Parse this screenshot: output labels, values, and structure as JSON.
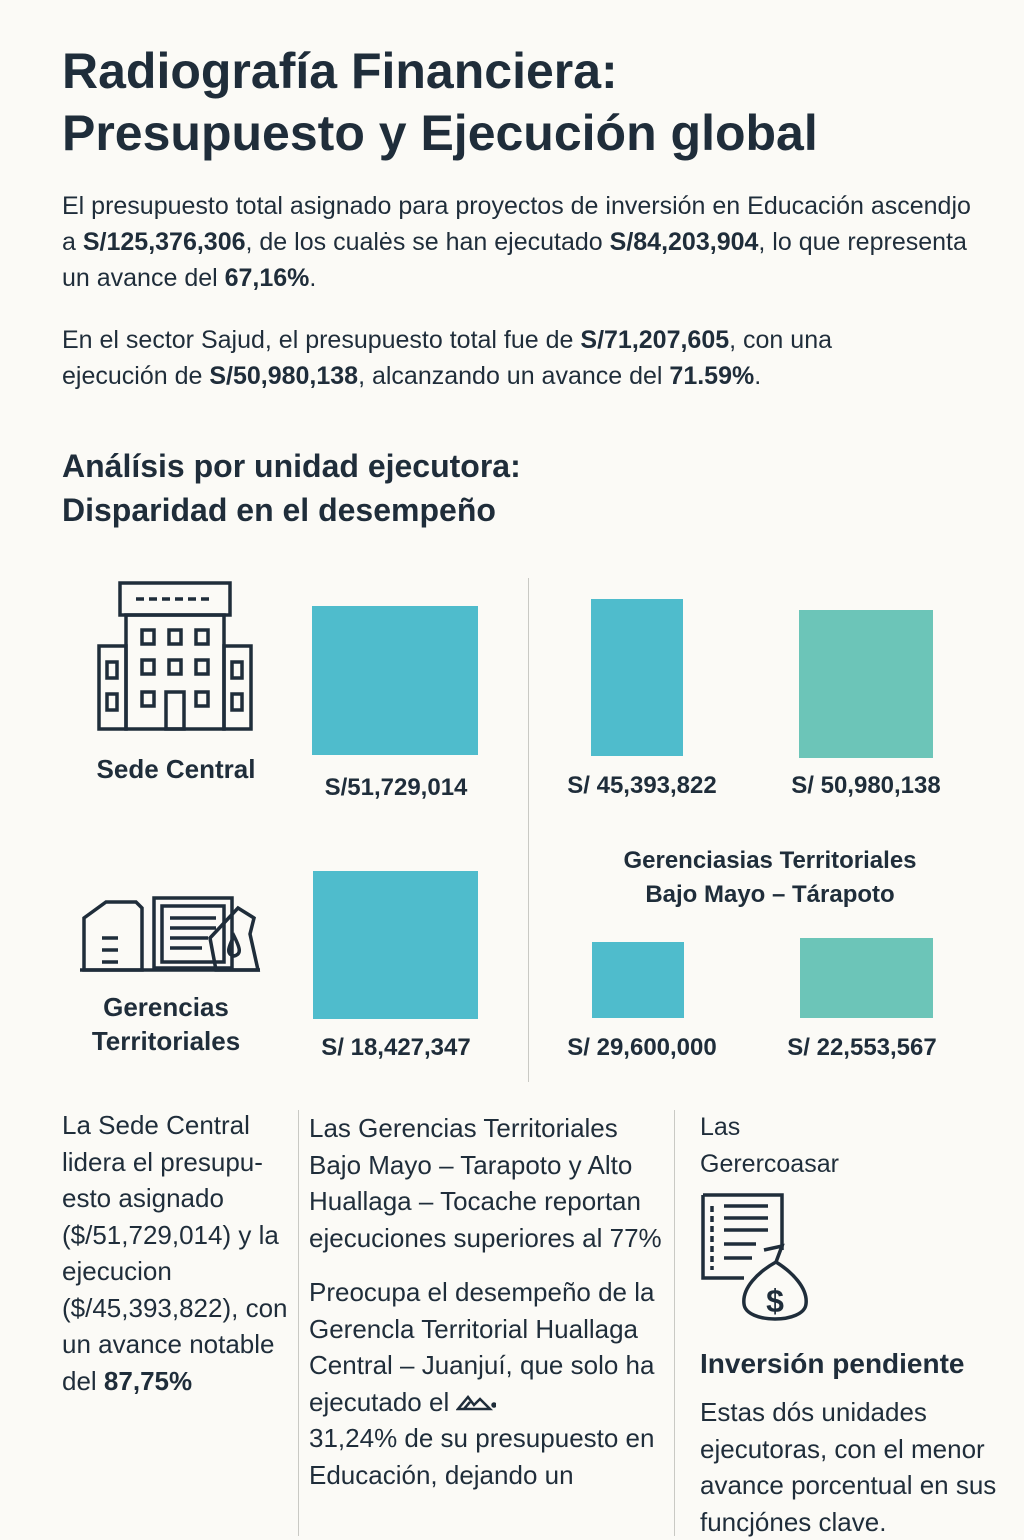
{
  "title": {
    "line1": "Radiografía Financiera:",
    "line2": "Presupuesto y Ejecución global"
  },
  "intro": {
    "p1": [
      {
        "t": "El presupuesto total asignado para proyectos de inversión en Educación ascendjo a "
      },
      {
        "t": "S/125,376,306",
        "b": true
      },
      {
        "t": ", de los cualės se han ejecutado "
      },
      {
        "t": "S/84,203,904",
        "b": true
      },
      {
        "t": ", lo que representa un avance del "
      },
      {
        "t": "67,16%",
        "b": true
      },
      {
        "t": "."
      }
    ],
    "p2": [
      {
        "t": "En el sector Sajud, el presupuesto total fue de "
      },
      {
        "t": "S/71,207,605",
        "b": true
      },
      {
        "t": ", con una ejecución de "
      },
      {
        "t": "S/50,980,138",
        "b": true
      },
      {
        "t": ", alcanzando un avance del "
      },
      {
        "t": "71.59%",
        "b": true
      },
      {
        "t": "."
      }
    ]
  },
  "section": {
    "line1": "Análísis por unidad ejecutora:",
    "line2": "Disparidad en el desempeño"
  },
  "units": {
    "sede": {
      "label": "Sede Central",
      "icon": "building-icon"
    },
    "gerencias": {
      "label1": "Gerencias",
      "label2": "Territoriales",
      "icon": "offices-icon"
    },
    "bajo_mayo": {
      "line1": "Gerenciasias Territoriales",
      "line2": "Bajo Mayo – Tárapoto"
    }
  },
  "bars": {
    "colors": {
      "budget": "#4fbccc",
      "execution": "#6cc5b8"
    },
    "sede_budget": {
      "value": 51729014,
      "label": "S/51,729,014"
    },
    "sede_a": {
      "value": 45393822,
      "label": "S/ 45,393,822"
    },
    "sede_b": {
      "value": 50980138,
      "label": "S/ 50,980,138"
    },
    "ger_budget": {
      "value": 18427347,
      "label": "S/ 18,427,347"
    },
    "ger_a": {
      "value": 29600000,
      "label": "S/ 29,600,000"
    },
    "ger_b": {
      "value": 22553567,
      "label": "S/ 22,553,567"
    }
  },
  "col1": [
    {
      "t": "La Sede Central lidera el presupu-esto asignado ($/51,729,014) y la ejecucion ($/45,393,822), con un avance notable del "
    },
    {
      "t": "87,75%",
      "b": true
    }
  ],
  "col2": {
    "p1": "Las Gerencias Territoriales Bajo Mayo – Tarapoto y Alto Huallaga – Tocache reportan ejecuciones superiores al 77%",
    "p2": "Preocupa el desempeño de la Gerencla Territorial Huallaga Central – Juanjuí, que solo ha ejecutado el",
    "p2_icon": "mountain-icon",
    "p3": "31,24% de su presupuesto en Educación, dejando un"
  },
  "col3": {
    "top": "Las Gerercoasar",
    "icon": "document-money-bag-icon",
    "heading": "Inversión pendiente",
    "body": "Estas dós unidades ejecutoras, con el menor avance porcentual en sus funcjónes clave."
  }
}
